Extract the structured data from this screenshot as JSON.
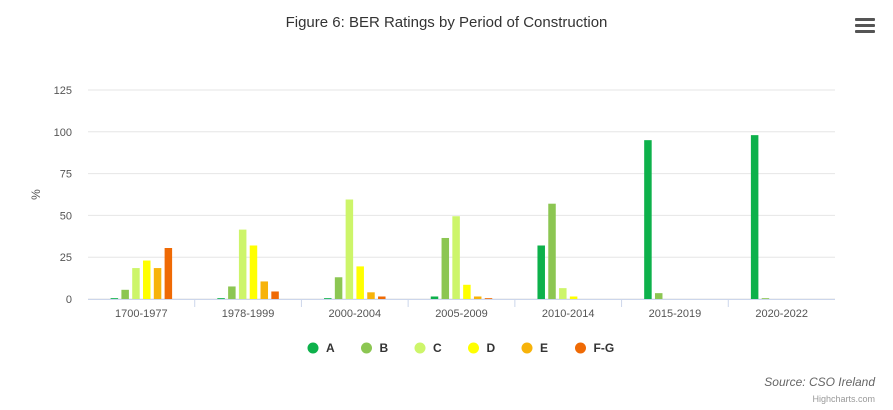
{
  "chart_data": {
    "type": "bar",
    "title": "Figure 6: BER Ratings by Period of Construction",
    "ylabel": "%",
    "ylim": [
      0,
      125
    ],
    "yticks": [
      "0",
      "25",
      "50",
      "75",
      "100",
      "125"
    ],
    "categories": [
      "1700-1977",
      "1978-1999",
      "2000-2004",
      "2005-2009",
      "2010-2014",
      "2015-2019",
      "2020-2022"
    ],
    "series": [
      {
        "name": "A",
        "color": "#0db14b",
        "values": [
          0.5,
          0.5,
          0.5,
          1.5,
          32,
          95,
          98
        ]
      },
      {
        "name": "B",
        "color": "#8cc652",
        "values": [
          5.5,
          7.5,
          13,
          36.5,
          57,
          3.5,
          0.5
        ]
      },
      {
        "name": "C",
        "color": "#cdf56a",
        "values": [
          18.5,
          41.5,
          59.5,
          49.5,
          6.5,
          0,
          0
        ]
      },
      {
        "name": "D",
        "color": "#ffff00",
        "values": [
          23,
          32,
          19.5,
          8.5,
          1.5,
          0,
          0
        ]
      },
      {
        "name": "E",
        "color": "#f7b30a",
        "values": [
          18.5,
          10.5,
          4,
          1.5,
          0,
          0,
          0
        ]
      },
      {
        "name": "F-G",
        "color": "#ef6a05",
        "values": [
          30.5,
          4.5,
          1.5,
          0.5,
          0,
          0,
          0
        ]
      }
    ],
    "grid": true,
    "legend": "bottom-center"
  },
  "source": "Source: CSO Ireland",
  "credits": "Highcharts.com",
  "menu_icon": "hamburger-menu-icon"
}
